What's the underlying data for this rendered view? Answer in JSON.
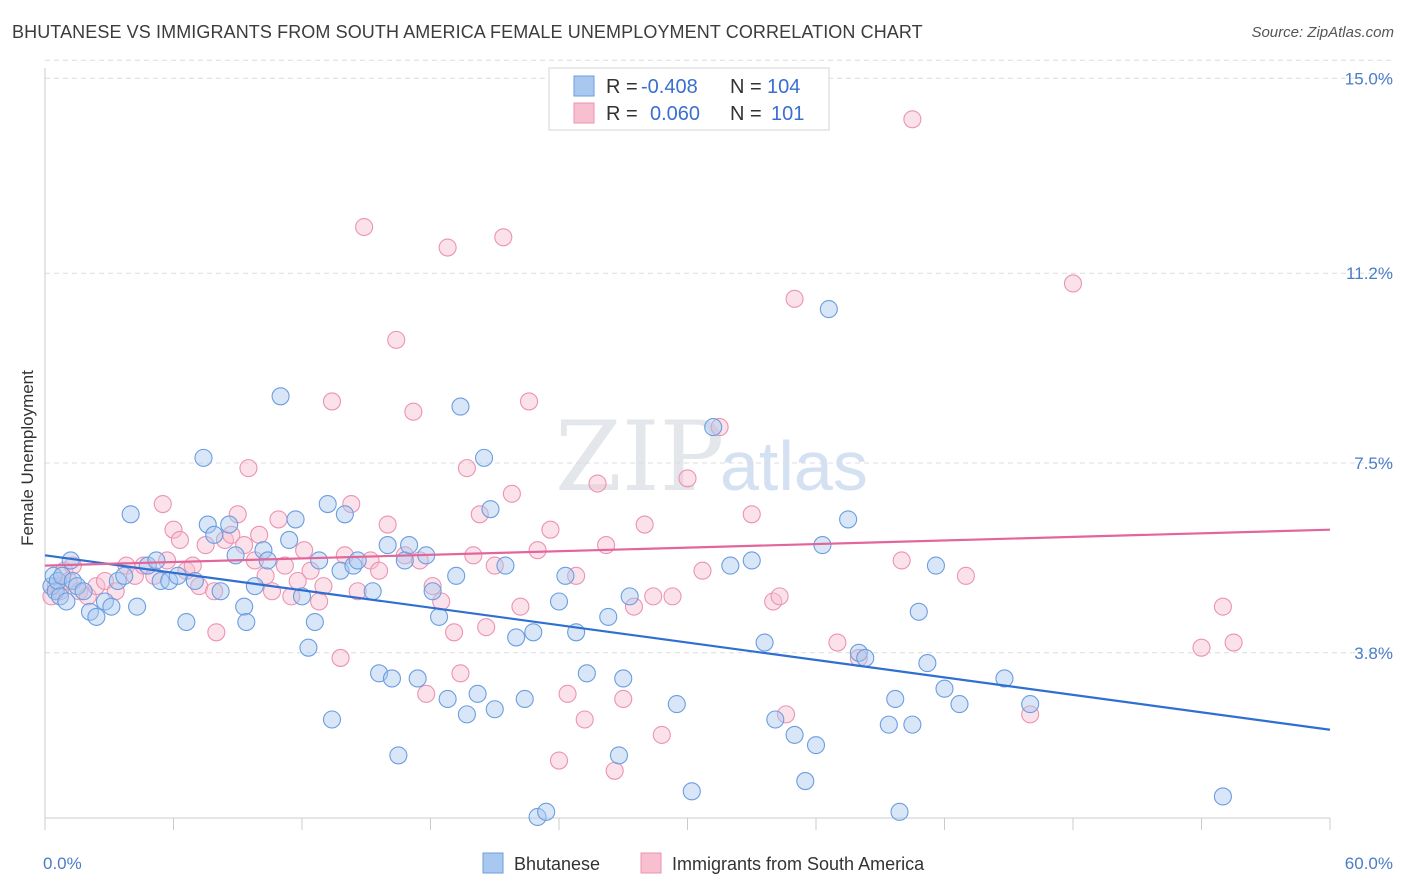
{
  "title": "BHUTANESE VS IMMIGRANTS FROM SOUTH AMERICA FEMALE UNEMPLOYMENT CORRELATION CHART",
  "source": "Source: ZipAtlas.com",
  "watermark": {
    "zip": "ZIP",
    "atlas": "atlas"
  },
  "colors": {
    "blue_fill": "#a9c8ef",
    "blue_stroke": "#6a9ee0",
    "blue_line": "#2e6fd1",
    "pink_fill": "#f7bfd0",
    "pink_stroke": "#ec93b1",
    "pink_line": "#e2669a",
    "grid": "#d9dde3",
    "axis_text": "#4a7cc7"
  },
  "legend_top": {
    "rows": [
      {
        "r_label": "R =",
        "r_value": "-0.408",
        "n_label": "N =",
        "n_value": "104"
      },
      {
        "r_label": "R =",
        "r_value": "0.060",
        "n_label": "N =",
        "n_value": "101"
      }
    ]
  },
  "chart_data": {
    "type": "scatter",
    "title": "BHUTANESE VS IMMIGRANTS FROM SOUTH AMERICA FEMALE UNEMPLOYMENT CORRELATION CHART",
    "ylabel": "Female Unemployment",
    "xlim": [
      0,
      60
    ],
    "ylim": [
      0.5,
      15.5
    ],
    "x_tick_labels": [
      "0.0%",
      "60.0%"
    ],
    "y_ticks": [
      3.8,
      7.5,
      11.2,
      15.0
    ],
    "y_tick_labels": [
      "3.8%",
      "7.5%",
      "11.2%",
      "15.0%"
    ],
    "grid": "horizontal dashed",
    "legend_placement": "top-center",
    "series": [
      {
        "name": "Bhutanese",
        "R": -0.408,
        "N": 104,
        "trend": {
          "x": [
            0,
            60
          ],
          "y": [
            5.7,
            2.3
          ]
        },
        "points": [
          [
            0.3,
            5.1
          ],
          [
            0.4,
            5.3
          ],
          [
            0.5,
            5.0
          ],
          [
            0.6,
            5.2
          ],
          [
            0.7,
            4.9
          ],
          [
            0.8,
            5.3
          ],
          [
            1.0,
            4.8
          ],
          [
            1.2,
            5.6
          ],
          [
            1.3,
            5.2
          ],
          [
            1.5,
            5.1
          ],
          [
            1.8,
            5.0
          ],
          [
            2.1,
            4.6
          ],
          [
            2.4,
            4.5
          ],
          [
            2.8,
            4.8
          ],
          [
            3.1,
            4.7
          ],
          [
            3.4,
            5.2
          ],
          [
            3.7,
            5.3
          ],
          [
            4.0,
            6.5
          ],
          [
            4.3,
            4.7
          ],
          [
            4.8,
            5.5
          ],
          [
            5.2,
            5.6
          ],
          [
            5.4,
            5.2
          ],
          [
            5.8,
            5.2
          ],
          [
            6.2,
            5.3
          ],
          [
            6.6,
            4.4
          ],
          [
            7.0,
            5.2
          ],
          [
            7.4,
            7.6
          ],
          [
            7.6,
            6.3
          ],
          [
            7.9,
            6.1
          ],
          [
            8.2,
            5.0
          ],
          [
            8.6,
            6.3
          ],
          [
            8.9,
            5.7
          ],
          [
            9.3,
            4.7
          ],
          [
            9.4,
            4.4
          ],
          [
            9.8,
            5.1
          ],
          [
            10.2,
            5.8
          ],
          [
            10.4,
            5.6
          ],
          [
            11.0,
            8.8
          ],
          [
            11.4,
            6.0
          ],
          [
            11.7,
            6.4
          ],
          [
            12.0,
            4.9
          ],
          [
            12.3,
            3.9
          ],
          [
            12.6,
            4.4
          ],
          [
            12.8,
            5.6
          ],
          [
            13.2,
            6.7
          ],
          [
            13.4,
            2.5
          ],
          [
            13.8,
            5.4
          ],
          [
            14.0,
            6.5
          ],
          [
            14.4,
            5.5
          ],
          [
            14.6,
            5.6
          ],
          [
            15.3,
            5.0
          ],
          [
            15.6,
            3.4
          ],
          [
            16.0,
            5.9
          ],
          [
            16.2,
            3.3
          ],
          [
            16.5,
            1.8
          ],
          [
            16.8,
            5.6
          ],
          [
            17.0,
            5.9
          ],
          [
            17.4,
            3.3
          ],
          [
            17.8,
            5.7
          ],
          [
            18.1,
            5.0
          ],
          [
            18.4,
            4.5
          ],
          [
            18.8,
            2.9
          ],
          [
            19.2,
            5.3
          ],
          [
            19.4,
            8.6
          ],
          [
            19.7,
            2.6
          ],
          [
            20.2,
            3.0
          ],
          [
            20.5,
            7.6
          ],
          [
            20.8,
            6.6
          ],
          [
            21.0,
            2.7
          ],
          [
            21.5,
            5.5
          ],
          [
            22.0,
            4.1
          ],
          [
            22.4,
            2.9
          ],
          [
            22.8,
            4.2
          ],
          [
            23.0,
            0.6
          ],
          [
            23.4,
            0.7
          ],
          [
            24.0,
            4.8
          ],
          [
            24.3,
            5.3
          ],
          [
            24.8,
            4.2
          ],
          [
            25.3,
            3.4
          ],
          [
            26.3,
            4.5
          ],
          [
            26.8,
            1.8
          ],
          [
            27.0,
            3.3
          ],
          [
            27.3,
            4.9
          ],
          [
            29.5,
            2.8
          ],
          [
            30.2,
            1.1
          ],
          [
            31.2,
            8.2
          ],
          [
            32.0,
            5.5
          ],
          [
            33.0,
            5.6
          ],
          [
            33.6,
            4.0
          ],
          [
            34.1,
            2.5
          ],
          [
            35.0,
            2.2
          ],
          [
            35.5,
            1.3
          ],
          [
            36.0,
            2.0
          ],
          [
            36.3,
            5.9
          ],
          [
            36.6,
            10.5
          ],
          [
            37.5,
            6.4
          ],
          [
            38.0,
            3.8
          ],
          [
            38.3,
            3.7
          ],
          [
            39.4,
            2.4
          ],
          [
            39.7,
            2.9
          ],
          [
            39.9,
            0.7
          ],
          [
            40.5,
            2.4
          ],
          [
            40.8,
            4.6
          ],
          [
            41.2,
            3.6
          ],
          [
            41.6,
            5.5
          ],
          [
            42.0,
            3.1
          ],
          [
            42.7,
            2.8
          ],
          [
            44.8,
            3.3
          ],
          [
            46.0,
            2.8
          ],
          [
            55.0,
            1.0
          ]
        ]
      },
      {
        "name": "Immigrants from South America",
        "R": 0.06,
        "N": 101,
        "trend": {
          "x": [
            0,
            60
          ],
          "y": [
            5.5,
            6.2
          ]
        },
        "points": [
          [
            0.3,
            4.9
          ],
          [
            0.5,
            5.1
          ],
          [
            0.7,
            5.0
          ],
          [
            0.9,
            5.4
          ],
          [
            1.1,
            5.2
          ],
          [
            1.3,
            5.5
          ],
          [
            1.6,
            5.0
          ],
          [
            2.0,
            4.9
          ],
          [
            2.4,
            5.1
          ],
          [
            2.8,
            5.2
          ],
          [
            3.3,
            5.0
          ],
          [
            3.8,
            5.5
          ],
          [
            4.2,
            5.3
          ],
          [
            4.6,
            5.5
          ],
          [
            5.1,
            5.3
          ],
          [
            5.5,
            6.7
          ],
          [
            5.7,
            5.6
          ],
          [
            6.0,
            6.2
          ],
          [
            6.3,
            6.0
          ],
          [
            6.6,
            5.4
          ],
          [
            6.9,
            5.5
          ],
          [
            7.2,
            5.1
          ],
          [
            7.5,
            5.9
          ],
          [
            7.9,
            5.0
          ],
          [
            8.0,
            4.2
          ],
          [
            8.4,
            6.0
          ],
          [
            8.7,
            6.1
          ],
          [
            9.0,
            6.5
          ],
          [
            9.3,
            5.9
          ],
          [
            9.5,
            7.4
          ],
          [
            9.8,
            5.6
          ],
          [
            10.0,
            6.1
          ],
          [
            10.3,
            5.3
          ],
          [
            10.6,
            5.0
          ],
          [
            10.9,
            6.4
          ],
          [
            11.2,
            5.5
          ],
          [
            11.5,
            4.9
          ],
          [
            11.8,
            5.2
          ],
          [
            12.1,
            5.8
          ],
          [
            12.4,
            5.4
          ],
          [
            12.8,
            4.8
          ],
          [
            13.0,
            5.1
          ],
          [
            13.4,
            8.7
          ],
          [
            13.8,
            3.7
          ],
          [
            14.0,
            5.7
          ],
          [
            14.3,
            6.7
          ],
          [
            14.6,
            5.0
          ],
          [
            14.9,
            12.1
          ],
          [
            15.2,
            5.6
          ],
          [
            15.6,
            5.4
          ],
          [
            16.0,
            6.3
          ],
          [
            16.4,
            9.9
          ],
          [
            16.8,
            5.7
          ],
          [
            17.2,
            8.5
          ],
          [
            17.5,
            5.6
          ],
          [
            17.8,
            3.0
          ],
          [
            18.1,
            5.1
          ],
          [
            18.5,
            4.8
          ],
          [
            18.8,
            11.7
          ],
          [
            19.1,
            4.2
          ],
          [
            19.4,
            3.4
          ],
          [
            19.7,
            7.4
          ],
          [
            20.0,
            5.7
          ],
          [
            20.3,
            6.5
          ],
          [
            20.6,
            4.3
          ],
          [
            21.0,
            5.5
          ],
          [
            21.4,
            11.9
          ],
          [
            21.8,
            6.9
          ],
          [
            22.2,
            4.7
          ],
          [
            22.6,
            8.7
          ],
          [
            23.0,
            5.8
          ],
          [
            23.6,
            6.2
          ],
          [
            24.0,
            1.7
          ],
          [
            24.4,
            3.0
          ],
          [
            24.8,
            5.3
          ],
          [
            25.2,
            2.5
          ],
          [
            25.8,
            7.1
          ],
          [
            26.2,
            5.9
          ],
          [
            26.6,
            1.5
          ],
          [
            27.0,
            2.9
          ],
          [
            27.5,
            4.7
          ],
          [
            28.0,
            6.3
          ],
          [
            28.4,
            4.9
          ],
          [
            28.8,
            2.2
          ],
          [
            29.3,
            4.9
          ],
          [
            30.0,
            7.2
          ],
          [
            30.7,
            5.4
          ],
          [
            31.5,
            8.2
          ],
          [
            33.0,
            6.5
          ],
          [
            34.0,
            4.8
          ],
          [
            34.3,
            4.9
          ],
          [
            34.6,
            2.6
          ],
          [
            35.0,
            10.7
          ],
          [
            37.0,
            4.0
          ],
          [
            38.0,
            3.7
          ],
          [
            40.0,
            5.6
          ],
          [
            40.5,
            14.2
          ],
          [
            43.0,
            5.3
          ],
          [
            46.0,
            2.6
          ],
          [
            48.0,
            11.0
          ],
          [
            54.0,
            3.9
          ],
          [
            55.0,
            4.7
          ],
          [
            55.5,
            4.0
          ]
        ]
      }
    ]
  },
  "bottom_legend": [
    {
      "label": "Bhutanese"
    },
    {
      "label": "Immigrants from South America"
    }
  ]
}
